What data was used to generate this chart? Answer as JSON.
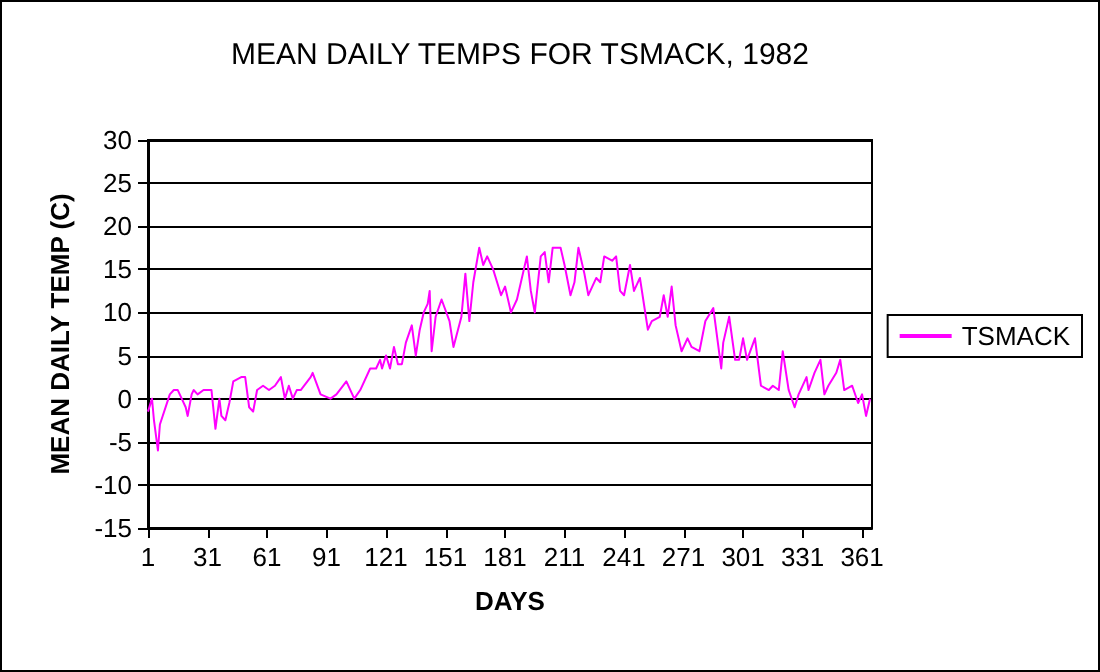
{
  "chart_data": {
    "type": "line",
    "title": "MEAN DAILY TEMPS FOR TSMACK, 1982",
    "xlabel": "DAYS",
    "ylabel": "MEAN DAILY TEMP (C)",
    "xlim": [
      1,
      366
    ],
    "xticks": [
      1,
      31,
      61,
      91,
      121,
      151,
      181,
      211,
      241,
      271,
      301,
      331,
      361
    ],
    "ylim": [
      -15,
      30
    ],
    "yticks": [
      -15,
      -10,
      -5,
      0,
      5,
      10,
      15,
      20,
      25,
      30
    ],
    "grid": "y",
    "legend": "right",
    "marker": "none",
    "line_style": "solid",
    "series": [
      {
        "name": "TSMACK",
        "color": "#ff00ff",
        "x": [
          1,
          3,
          4,
          6,
          7,
          12,
          14,
          16,
          18,
          20,
          21,
          23,
          24,
          26,
          29,
          31,
          33,
          35,
          37,
          38,
          40,
          42,
          44,
          48,
          50,
          52,
          54,
          56,
          59,
          62,
          65,
          68,
          70,
          72,
          74,
          76,
          78,
          83,
          84,
          88,
          93,
          96,
          101,
          105,
          108,
          113,
          116,
          118,
          119,
          121,
          123,
          125,
          127,
          129,
          131,
          134,
          136,
          138,
          140,
          142,
          143,
          144,
          146,
          149,
          153,
          155,
          159,
          161,
          163,
          165,
          168,
          170,
          172,
          175,
          177,
          179,
          181,
          184,
          187,
          189,
          192,
          194,
          196,
          199,
          201,
          203,
          205,
          209,
          211,
          214,
          216,
          218,
          221,
          223,
          227,
          229,
          231,
          235,
          237,
          239,
          241,
          244,
          246,
          249,
          252,
          253,
          255,
          259,
          261,
          263,
          265,
          267,
          270,
          273,
          275,
          279,
          282,
          286,
          290,
          291,
          294,
          297,
          299,
          301,
          303,
          307,
          310,
          314,
          316,
          319,
          321,
          324,
          327,
          329,
          333,
          334,
          337,
          340,
          342,
          344,
          348,
          350,
          352,
          356,
          359,
          361,
          363,
          365
        ],
        "values": [
          -1.5,
          0,
          -2.5,
          -6,
          -3,
          0.5,
          1,
          1,
          0,
          -1,
          -2,
          0.5,
          1,
          0.5,
          1,
          1,
          1,
          -3.5,
          0,
          -2,
          -2.5,
          -0.5,
          2,
          2.5,
          2.5,
          -1,
          -1.5,
          1,
          1.5,
          1,
          1.5,
          2.5,
          0,
          1.5,
          0,
          1,
          1,
          2.5,
          3,
          0.5,
          0,
          0.5,
          2,
          0,
          1,
          3.5,
          3.5,
          4.5,
          3.5,
          5,
          3.5,
          6,
          4,
          4,
          6.5,
          8.5,
          5,
          8,
          10,
          11,
          12.5,
          5.5,
          9.5,
          11.5,
          9,
          6,
          9.5,
          14.5,
          9,
          13.5,
          17.5,
          15.5,
          16.5,
          15,
          13.5,
          12,
          13,
          10,
          11.5,
          13.5,
          16.5,
          12.5,
          10,
          16.5,
          17,
          13.5,
          17.5,
          17.5,
          15.5,
          12,
          13.5,
          17.5,
          14.5,
          12,
          14,
          13.5,
          16.5,
          16,
          16.5,
          12.5,
          12,
          15.5,
          12.5,
          14,
          9.5,
          8,
          9,
          9.5,
          12,
          9.5,
          13,
          8.5,
          5.5,
          7,
          6,
          5.5,
          9,
          10.5,
          3.5,
          6.5,
          9.5,
          4.5,
          4.5,
          7,
          4.5,
          7,
          1.5,
          1,
          1.5,
          1,
          5.5,
          1,
          -1,
          0.5,
          2.5,
          1,
          3,
          4.5,
          0.5,
          1.5,
          3,
          4.5,
          1,
          1.5,
          -0.5,
          0.5,
          -2,
          0
        ]
      }
    ]
  }
}
